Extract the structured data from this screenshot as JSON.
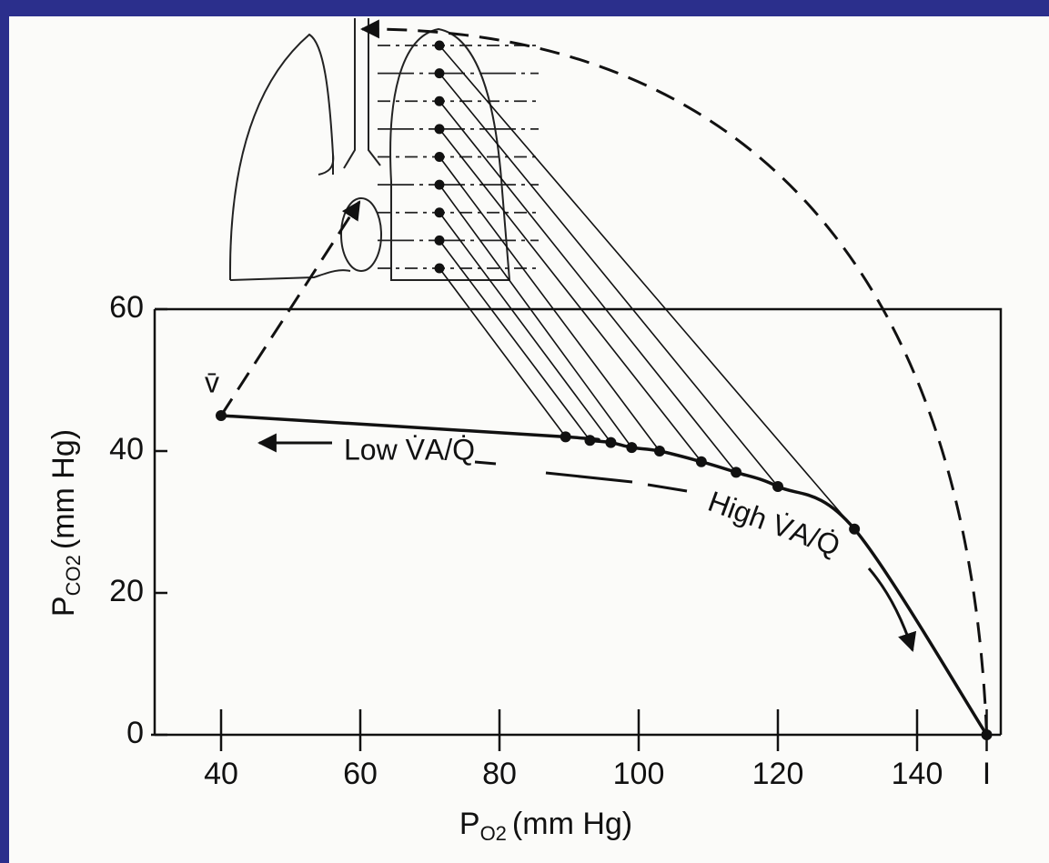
{
  "chart_data": {
    "type": "line",
    "x": [
      40,
      89.5,
      93,
      96,
      99,
      103,
      109,
      114,
      120,
      131,
      150
    ],
    "values": [
      45,
      42,
      41.5,
      41.2,
      40.5,
      40,
      38.5,
      37,
      35,
      29,
      0
    ],
    "color": "#111111",
    "xlim": [
      30,
      152
    ],
    "ylim": [
      0,
      60
    ],
    "xticks": [
      40,
      60,
      80,
      100,
      120,
      140,
      {
        "value": 150,
        "label": "I"
      }
    ],
    "yticks": [
      0,
      20,
      40,
      60
    ],
    "x_label": [
      "P",
      "O2",
      "(mm Hg)"
    ],
    "y_label": [
      "P",
      "CO2",
      "(mm Hg)"
    ],
    "annotations": [
      "v̄",
      "Low V̇A/Q̇",
      "High V̇A/Q̇"
    ]
  }
}
